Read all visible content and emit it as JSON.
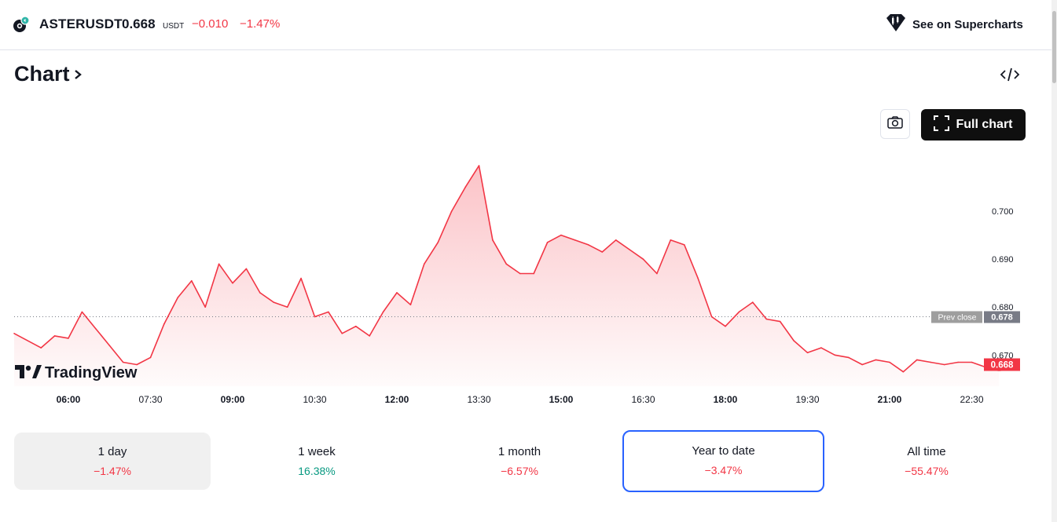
{
  "header": {
    "symbol": "ASTERUSDT",
    "price": "0.668",
    "currency": "USDT",
    "change": "−0.010",
    "change_percent": "−1.47%",
    "supercharts_label": "See on Supercharts"
  },
  "section": {
    "title": "Chart"
  },
  "toolbar": {
    "full_chart_label": "Full chart",
    "snapshot_icon": "camera-icon",
    "embed_icon": "code-icon"
  },
  "colors": {
    "down": "#f23645",
    "up": "#089981",
    "focus": "#2962ff"
  },
  "chart_data": {
    "type": "area",
    "x_ticks": [
      "06:00",
      "07:30",
      "09:00",
      "10:30",
      "12:00",
      "13:30",
      "15:00",
      "16:30",
      "18:00",
      "19:30",
      "21:00",
      "22:30"
    ],
    "y_ticks": [
      "0.700",
      "0.690",
      "0.680",
      "0.670"
    ],
    "ylim": [
      0.6635,
      0.7105
    ],
    "prev_close": {
      "label": "Prev close",
      "value": "0.678"
    },
    "last_price": "0.668",
    "watermark": "TradingView",
    "series": [
      {
        "time": [
          "05:15",
          "05:30",
          "05:45",
          "06:00",
          "06:15",
          "06:30",
          "06:45",
          "07:00",
          "07:15",
          "07:30",
          "07:45",
          "08:00",
          "08:15",
          "08:30",
          "08:45",
          "09:00",
          "09:15",
          "09:30",
          "09:45",
          "10:00",
          "10:15",
          "10:30",
          "10:45",
          "11:00",
          "11:15",
          "11:30",
          "11:45",
          "12:00",
          "12:15",
          "12:30",
          "12:45",
          "13:00",
          "13:15",
          "13:30",
          "13:45",
          "14:00",
          "14:15",
          "14:30",
          "14:45",
          "15:00",
          "15:15",
          "15:30",
          "15:45",
          "16:00",
          "16:15",
          "16:30",
          "16:45",
          "17:00",
          "17:15",
          "17:30",
          "17:45",
          "18:00",
          "18:15",
          "18:30",
          "18:45",
          "19:00",
          "19:15",
          "19:30",
          "19:45",
          "20:00",
          "20:15",
          "20:30",
          "20:45",
          "21:00",
          "21:15",
          "21:30",
          "21:45",
          "22:00",
          "22:15",
          "22:30",
          "22:45",
          "23:00"
        ],
        "values": [
          0.6745,
          0.6715,
          0.674,
          0.6735,
          0.679,
          0.6755,
          0.672,
          0.6685,
          0.668,
          0.6695,
          0.6765,
          0.682,
          0.6855,
          0.68,
          0.689,
          0.685,
          0.688,
          0.683,
          0.681,
          0.68,
          0.686,
          0.678,
          0.679,
          0.6745,
          0.676,
          0.674,
          0.679,
          0.683,
          0.6805,
          0.689,
          0.6935,
          0.7,
          0.705,
          0.7095,
          0.694,
          0.689,
          0.687,
          0.687,
          0.6935,
          0.695,
          0.694,
          0.693,
          0.6915,
          0.694,
          0.692,
          0.69,
          0.687,
          0.694,
          0.693,
          0.686,
          0.678,
          0.676,
          0.679,
          0.681,
          0.6775,
          0.677,
          0.673,
          0.6705,
          0.6715,
          0.67,
          0.6695,
          0.668,
          0.669,
          0.6685,
          0.6665,
          0.669,
          0.6685,
          0.668,
          0.6685,
          0.6685,
          0.6675,
          0.668
        ]
      }
    ]
  },
  "periods": [
    {
      "label": "1 day",
      "value": "−1.47%",
      "dir": "down"
    },
    {
      "label": "1 week",
      "value": "16.38%",
      "dir": "up"
    },
    {
      "label": "1 month",
      "value": "−6.57%",
      "dir": "down"
    },
    {
      "label": "Year to date",
      "value": "−3.47%",
      "dir": "down"
    },
    {
      "label": "All time",
      "value": "−55.47%",
      "dir": "down"
    }
  ]
}
